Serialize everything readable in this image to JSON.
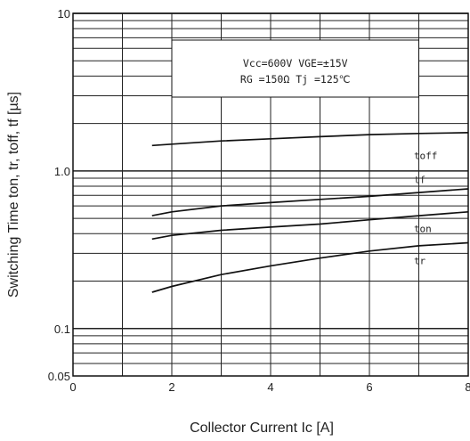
{
  "chart_data": {
    "type": "line",
    "xlabel": "Collector Current Ic [A]",
    "ylabel": "Switching Time ton, tr, toff, tf [µs]",
    "xlim": [
      0,
      8
    ],
    "ylim": [
      0.05,
      10
    ],
    "y_scale": "log",
    "grid": true,
    "x_ticks": [
      "0",
      "2",
      "4",
      "6",
      "8"
    ],
    "y_ticks": [
      {
        "value": 10,
        "label": "10"
      },
      {
        "value": 1,
        "label": "1.0"
      },
      {
        "value": 0.1,
        "label": "0.1"
      },
      {
        "value": 0.05,
        "label": "0.05"
      }
    ],
    "conditions": [
      "Vcc=600V  VGE=±15V",
      "RG =150Ω  Tj =125℃"
    ],
    "series": [
      {
        "name": "toff",
        "x": [
          1.6,
          2,
          3,
          4,
          5,
          6,
          7,
          8
        ],
        "y": [
          1.45,
          1.48,
          1.55,
          1.6,
          1.65,
          1.7,
          1.73,
          1.75
        ]
      },
      {
        "name": "tf",
        "x": [
          1.6,
          2,
          3,
          4,
          5,
          6,
          7,
          8
        ],
        "y": [
          0.52,
          0.55,
          0.6,
          0.63,
          0.66,
          0.69,
          0.73,
          0.77
        ]
      },
      {
        "name": "ton",
        "x": [
          1.6,
          2,
          3,
          4,
          5,
          6,
          7,
          8
        ],
        "y": [
          0.37,
          0.39,
          0.42,
          0.44,
          0.46,
          0.49,
          0.52,
          0.55
        ]
      },
      {
        "name": "tr",
        "x": [
          1.6,
          2,
          3,
          4,
          5,
          6,
          7,
          8
        ],
        "y": [
          0.17,
          0.185,
          0.22,
          0.25,
          0.28,
          0.31,
          0.335,
          0.35
        ]
      }
    ]
  }
}
